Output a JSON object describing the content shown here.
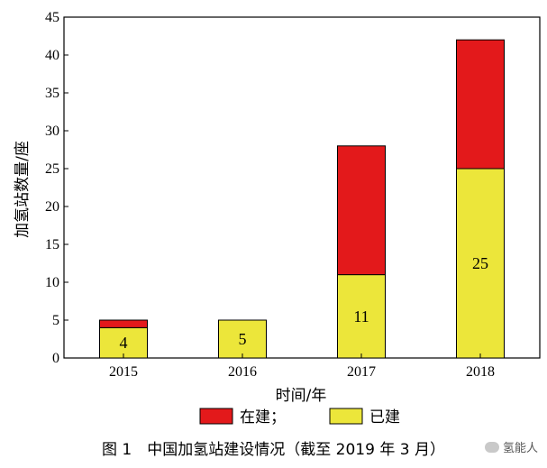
{
  "chart_data": {
    "type": "bar",
    "stacked": true,
    "categories": [
      "2015",
      "2016",
      "2017",
      "2018"
    ],
    "series": [
      {
        "name": "已建",
        "values": [
          4,
          5,
          11,
          25
        ],
        "color": "#ece63a"
      },
      {
        "name": "在建；",
        "values": [
          1,
          0,
          17,
          17
        ],
        "color": "#e3191b"
      }
    ],
    "data_labels": [
      "4",
      "5",
      "11",
      "25"
    ],
    "xlabel": "时间/年",
    "ylabel": "加氢站数量/座",
    "ylim": [
      0,
      45
    ],
    "yticks": [
      0,
      5,
      10,
      15,
      20,
      25,
      30,
      35,
      40,
      45
    ],
    "grid": false,
    "legend_position": "bottom"
  },
  "caption": "图 1　中国加氢站建设情况（截至 2019 年 3 月）",
  "watermark": {
    "text": "氢能人",
    "icon": "wechat-icon"
  }
}
